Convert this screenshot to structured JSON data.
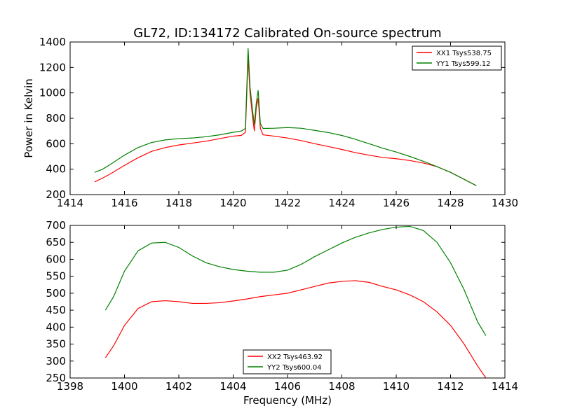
{
  "chart_data": [
    {
      "type": "line",
      "title": "GL72, ID:134172 Calibrated On-source spectrum",
      "xlabel": "",
      "ylabel": "Power in Kelvin",
      "xlim": [
        1414,
        1430
      ],
      "ylim": [
        200,
        1400
      ],
      "xticks": [
        1414,
        1416,
        1418,
        1420,
        1422,
        1424,
        1426,
        1428,
        1430
      ],
      "yticks": [
        200,
        400,
        600,
        800,
        1000,
        1200,
        1400
      ],
      "legend_position": "top-right",
      "grid": false,
      "series": [
        {
          "name": "XX1 Tsys538.75",
          "color": "#ff0000",
          "points": [
            [
              1414.9,
              300
            ],
            [
              1415.2,
              330
            ],
            [
              1415.5,
              365
            ],
            [
              1416,
              430
            ],
            [
              1416.5,
              490
            ],
            [
              1417,
              540
            ],
            [
              1417.5,
              570
            ],
            [
              1418,
              590
            ],
            [
              1418.5,
              605
            ],
            [
              1419,
              620
            ],
            [
              1419.5,
              640
            ],
            [
              1420,
              660
            ],
            [
              1420.3,
              665
            ],
            [
              1420.45,
              690
            ],
            [
              1420.55,
              1280
            ],
            [
              1420.62,
              1000
            ],
            [
              1420.72,
              800
            ],
            [
              1420.78,
              700
            ],
            [
              1420.85,
              880
            ],
            [
              1420.92,
              960
            ],
            [
              1421.0,
              720
            ],
            [
              1421.1,
              670
            ],
            [
              1421.5,
              660
            ],
            [
              1422,
              645
            ],
            [
              1422.5,
              625
            ],
            [
              1423,
              600
            ],
            [
              1423.5,
              578
            ],
            [
              1424,
              555
            ],
            [
              1424.5,
              530
            ],
            [
              1425,
              510
            ],
            [
              1425.5,
              492
            ],
            [
              1426,
              482
            ],
            [
              1426.5,
              468
            ],
            [
              1427,
              448
            ],
            [
              1427.5,
              420
            ],
            [
              1428,
              375
            ],
            [
              1428.5,
              320
            ],
            [
              1428.95,
              270
            ]
          ]
        },
        {
          "name": "YY1 Tsys599.12",
          "color": "#008000",
          "points": [
            [
              1414.9,
              375
            ],
            [
              1415.2,
              400
            ],
            [
              1415.5,
              440
            ],
            [
              1416,
              510
            ],
            [
              1416.5,
              570
            ],
            [
              1417,
              610
            ],
            [
              1417.5,
              630
            ],
            [
              1418,
              640
            ],
            [
              1418.5,
              645
            ],
            [
              1419,
              655
            ],
            [
              1419.5,
              670
            ],
            [
              1420,
              690
            ],
            [
              1420.3,
              700
            ],
            [
              1420.45,
              720
            ],
            [
              1420.55,
              1350
            ],
            [
              1420.62,
              1050
            ],
            [
              1420.72,
              850
            ],
            [
              1420.78,
              750
            ],
            [
              1420.85,
              920
            ],
            [
              1420.92,
              1020
            ],
            [
              1421.0,
              760
            ],
            [
              1421.1,
              720
            ],
            [
              1421.5,
              722
            ],
            [
              1422,
              727
            ],
            [
              1422.5,
              722
            ],
            [
              1423,
              705
            ],
            [
              1423.5,
              688
            ],
            [
              1424,
              665
            ],
            [
              1424.5,
              635
            ],
            [
              1425,
              600
            ],
            [
              1425.5,
              565
            ],
            [
              1426,
              535
            ],
            [
              1426.5,
              500
            ],
            [
              1427,
              462
            ],
            [
              1427.5,
              420
            ],
            [
              1428,
              375
            ],
            [
              1428.5,
              320
            ],
            [
              1428.95,
              270
            ]
          ]
        }
      ]
    },
    {
      "type": "line",
      "title": "",
      "xlabel": "Frequency (MHz)",
      "ylabel": "",
      "xlim": [
        1398,
        1414
      ],
      "ylim": [
        250,
        700
      ],
      "xticks": [
        1398,
        1400,
        1402,
        1404,
        1406,
        1408,
        1410,
        1412,
        1414
      ],
      "yticks": [
        250,
        300,
        350,
        400,
        450,
        500,
        550,
        600,
        650,
        700
      ],
      "legend_position": "bottom-center",
      "grid": false,
      "series": [
        {
          "name": "XX2 Tsys463.92",
          "color": "#ff0000",
          "points": [
            [
              1399.3,
              310
            ],
            [
              1399.6,
              345
            ],
            [
              1400,
              405
            ],
            [
              1400.5,
              455
            ],
            [
              1401,
              475
            ],
            [
              1401.5,
              478
            ],
            [
              1402,
              475
            ],
            [
              1402.5,
              470
            ],
            [
              1403,
              470
            ],
            [
              1403.5,
              472
            ],
            [
              1404,
              477
            ],
            [
              1404.5,
              483
            ],
            [
              1405,
              490
            ],
            [
              1405.5,
              495
            ],
            [
              1406,
              500
            ],
            [
              1406.5,
              510
            ],
            [
              1407,
              520
            ],
            [
              1407.5,
              530
            ],
            [
              1408,
              535
            ],
            [
              1408.5,
              537
            ],
            [
              1409,
              532
            ],
            [
              1409.5,
              520
            ],
            [
              1410,
              510
            ],
            [
              1410.5,
              495
            ],
            [
              1411,
              475
            ],
            [
              1411.5,
              445
            ],
            [
              1412,
              405
            ],
            [
              1412.5,
              350
            ],
            [
              1413,
              285
            ],
            [
              1413.3,
              250
            ]
          ]
        },
        {
          "name": "YY2 Tsys600.04",
          "color": "#008000",
          "points": [
            [
              1399.3,
              450
            ],
            [
              1399.6,
              490
            ],
            [
              1400,
              565
            ],
            [
              1400.5,
              625
            ],
            [
              1401,
              648
            ],
            [
              1401.5,
              650
            ],
            [
              1402,
              635
            ],
            [
              1402.5,
              610
            ],
            [
              1403,
              590
            ],
            [
              1403.5,
              578
            ],
            [
              1404,
              570
            ],
            [
              1404.5,
              565
            ],
            [
              1405,
              562
            ],
            [
              1405.5,
              562
            ],
            [
              1406,
              568
            ],
            [
              1406.5,
              585
            ],
            [
              1407,
              608
            ],
            [
              1407.5,
              628
            ],
            [
              1408,
              648
            ],
            [
              1408.5,
              665
            ],
            [
              1409,
              678
            ],
            [
              1409.5,
              688
            ],
            [
              1410,
              695
            ],
            [
              1410.5,
              697
            ],
            [
              1411,
              685
            ],
            [
              1411.5,
              650
            ],
            [
              1412,
              590
            ],
            [
              1412.5,
              510
            ],
            [
              1413,
              415
            ],
            [
              1413.3,
              375
            ]
          ]
        }
      ]
    }
  ]
}
